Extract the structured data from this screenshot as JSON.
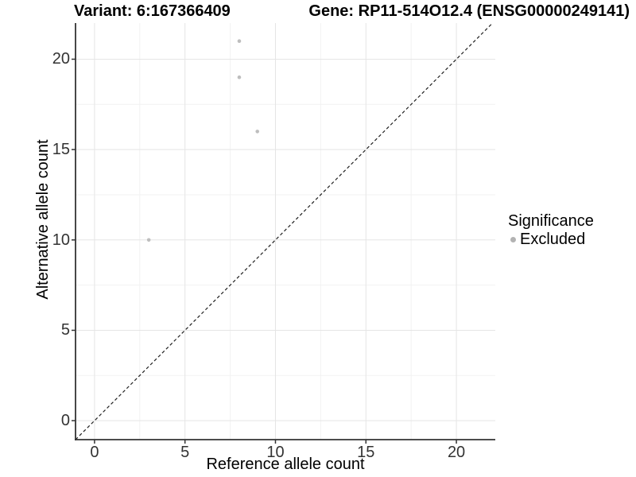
{
  "chart_data": {
    "type": "scatter",
    "titles": {
      "left": "Variant: 6:167366409",
      "right": "Gene: RP11-514O12.4 (ENSG00000249141)"
    },
    "xlabel": "Reference allele count",
    "ylabel": "Alternative allele count",
    "x_ticks": [
      0,
      5,
      10,
      15,
      20
    ],
    "y_ticks": [
      0,
      5,
      10,
      15,
      20
    ],
    "x_minor_ticks": [
      2.5,
      7.5,
      12.5,
      17.5
    ],
    "y_minor_ticks": [
      2.5,
      7.5,
      12.5,
      17.5
    ],
    "xlim": [
      -1.05,
      22.15
    ],
    "ylim": [
      -1.05,
      22.0
    ],
    "grid": true,
    "reference_line": {
      "style": "dashed",
      "slope": 1,
      "intercept": 0
    },
    "series": [
      {
        "name": "Excluded",
        "color": "#bebebe",
        "points": [
          {
            "x": 8,
            "y": 21
          },
          {
            "x": 8,
            "y": 19
          },
          {
            "x": 9,
            "y": 16
          },
          {
            "x": 3,
            "y": 10
          }
        ]
      }
    ],
    "legend": {
      "title": "Significance",
      "position": "right",
      "items": [
        {
          "label": "Excluded",
          "color": "#b3b3b3"
        }
      ]
    },
    "colors": {
      "background": "#ffffff",
      "axis_line": "#333333",
      "grid_major": "#e5e5e5",
      "grid_minor": "#f2f2f2",
      "tick_mark": "#333333",
      "tick_label": "#333333",
      "reference_line": "#1f1f1f"
    }
  }
}
